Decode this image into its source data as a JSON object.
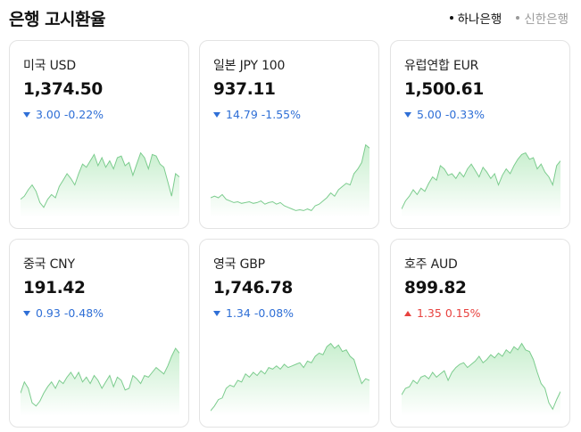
{
  "header": {
    "title": "은행 고시환율",
    "banks": [
      {
        "label": "하나은행",
        "active": true
      },
      {
        "label": "신한은행",
        "active": false
      }
    ]
  },
  "cards": [
    {
      "name": "미국 USD",
      "rate": "1,374.50",
      "direction": "down",
      "change": "3.00",
      "percent": "-0.22%",
      "trend": [
        0.18,
        0.22,
        0.3,
        0.36,
        0.28,
        0.14,
        0.08,
        0.18,
        0.24,
        0.2,
        0.34,
        0.42,
        0.5,
        0.44,
        0.36,
        0.5,
        0.62,
        0.58,
        0.66,
        0.74,
        0.6,
        0.7,
        0.58,
        0.66,
        0.56,
        0.7,
        0.72,
        0.6,
        0.64,
        0.48,
        0.62,
        0.76,
        0.7,
        0.56,
        0.74,
        0.72,
        0.62,
        0.58,
        0.4,
        0.22,
        0.5,
        0.46
      ]
    },
    {
      "name": "일본 JPY 100",
      "rate": "937.11",
      "direction": "down",
      "change": "14.79",
      "percent": "-1.55%",
      "trend": [
        0.2,
        0.22,
        0.2,
        0.24,
        0.18,
        0.16,
        0.14,
        0.15,
        0.13,
        0.14,
        0.15,
        0.13,
        0.14,
        0.16,
        0.12,
        0.14,
        0.15,
        0.12,
        0.14,
        0.1,
        0.08,
        0.06,
        0.04,
        0.05,
        0.04,
        0.06,
        0.04,
        0.1,
        0.12,
        0.16,
        0.2,
        0.26,
        0.22,
        0.3,
        0.34,
        0.38,
        0.36,
        0.5,
        0.56,
        0.64,
        0.86,
        0.82
      ]
    },
    {
      "name": "유럽연합 EUR",
      "rate": "1,500.61",
      "direction": "down",
      "change": "5.00",
      "percent": "-0.33%",
      "trend": [
        0.06,
        0.16,
        0.22,
        0.3,
        0.24,
        0.32,
        0.28,
        0.38,
        0.46,
        0.42,
        0.6,
        0.56,
        0.48,
        0.5,
        0.44,
        0.52,
        0.46,
        0.56,
        0.62,
        0.54,
        0.46,
        0.58,
        0.52,
        0.44,
        0.5,
        0.36,
        0.48,
        0.56,
        0.5,
        0.6,
        0.68,
        0.74,
        0.76,
        0.68,
        0.7,
        0.56,
        0.62,
        0.52,
        0.46,
        0.36,
        0.6,
        0.66
      ]
    },
    {
      "name": "중국 CNY",
      "rate": "191.42",
      "direction": "down",
      "change": "0.93",
      "percent": "-0.48%",
      "trend": [
        0.24,
        0.38,
        0.3,
        0.12,
        0.08,
        0.14,
        0.24,
        0.32,
        0.38,
        0.3,
        0.4,
        0.36,
        0.44,
        0.5,
        0.42,
        0.5,
        0.38,
        0.44,
        0.36,
        0.46,
        0.4,
        0.3,
        0.38,
        0.46,
        0.32,
        0.44,
        0.4,
        0.28,
        0.3,
        0.46,
        0.42,
        0.36,
        0.46,
        0.44,
        0.5,
        0.56,
        0.52,
        0.48,
        0.58,
        0.7,
        0.8,
        0.74
      ]
    },
    {
      "name": "영국 GBP",
      "rate": "1,746.78",
      "direction": "down",
      "change": "1.34",
      "percent": "-0.08%",
      "trend": [
        0.02,
        0.08,
        0.16,
        0.18,
        0.3,
        0.34,
        0.32,
        0.4,
        0.38,
        0.48,
        0.44,
        0.5,
        0.46,
        0.52,
        0.48,
        0.56,
        0.54,
        0.58,
        0.54,
        0.6,
        0.56,
        0.58,
        0.6,
        0.62,
        0.56,
        0.64,
        0.62,
        0.7,
        0.74,
        0.72,
        0.82,
        0.86,
        0.8,
        0.84,
        0.76,
        0.78,
        0.7,
        0.66,
        0.5,
        0.36,
        0.42,
        0.4
      ]
    },
    {
      "name": "호주 AUD",
      "rate": "899.82",
      "direction": "up",
      "change": "1.35",
      "percent": "0.15%",
      "trend": [
        0.22,
        0.3,
        0.32,
        0.4,
        0.36,
        0.44,
        0.46,
        0.42,
        0.5,
        0.44,
        0.48,
        0.52,
        0.4,
        0.5,
        0.56,
        0.6,
        0.62,
        0.56,
        0.6,
        0.64,
        0.7,
        0.62,
        0.66,
        0.72,
        0.68,
        0.74,
        0.7,
        0.78,
        0.74,
        0.82,
        0.78,
        0.86,
        0.78,
        0.76,
        0.66,
        0.5,
        0.36,
        0.3,
        0.12,
        0.04,
        0.16,
        0.26
      ]
    }
  ],
  "colors": {
    "line": "#7ccc8e",
    "fill_top": "#c9efcf",
    "fill_bottom": "#ffffff",
    "down": "#2f6fd6",
    "up": "#e8423f"
  }
}
